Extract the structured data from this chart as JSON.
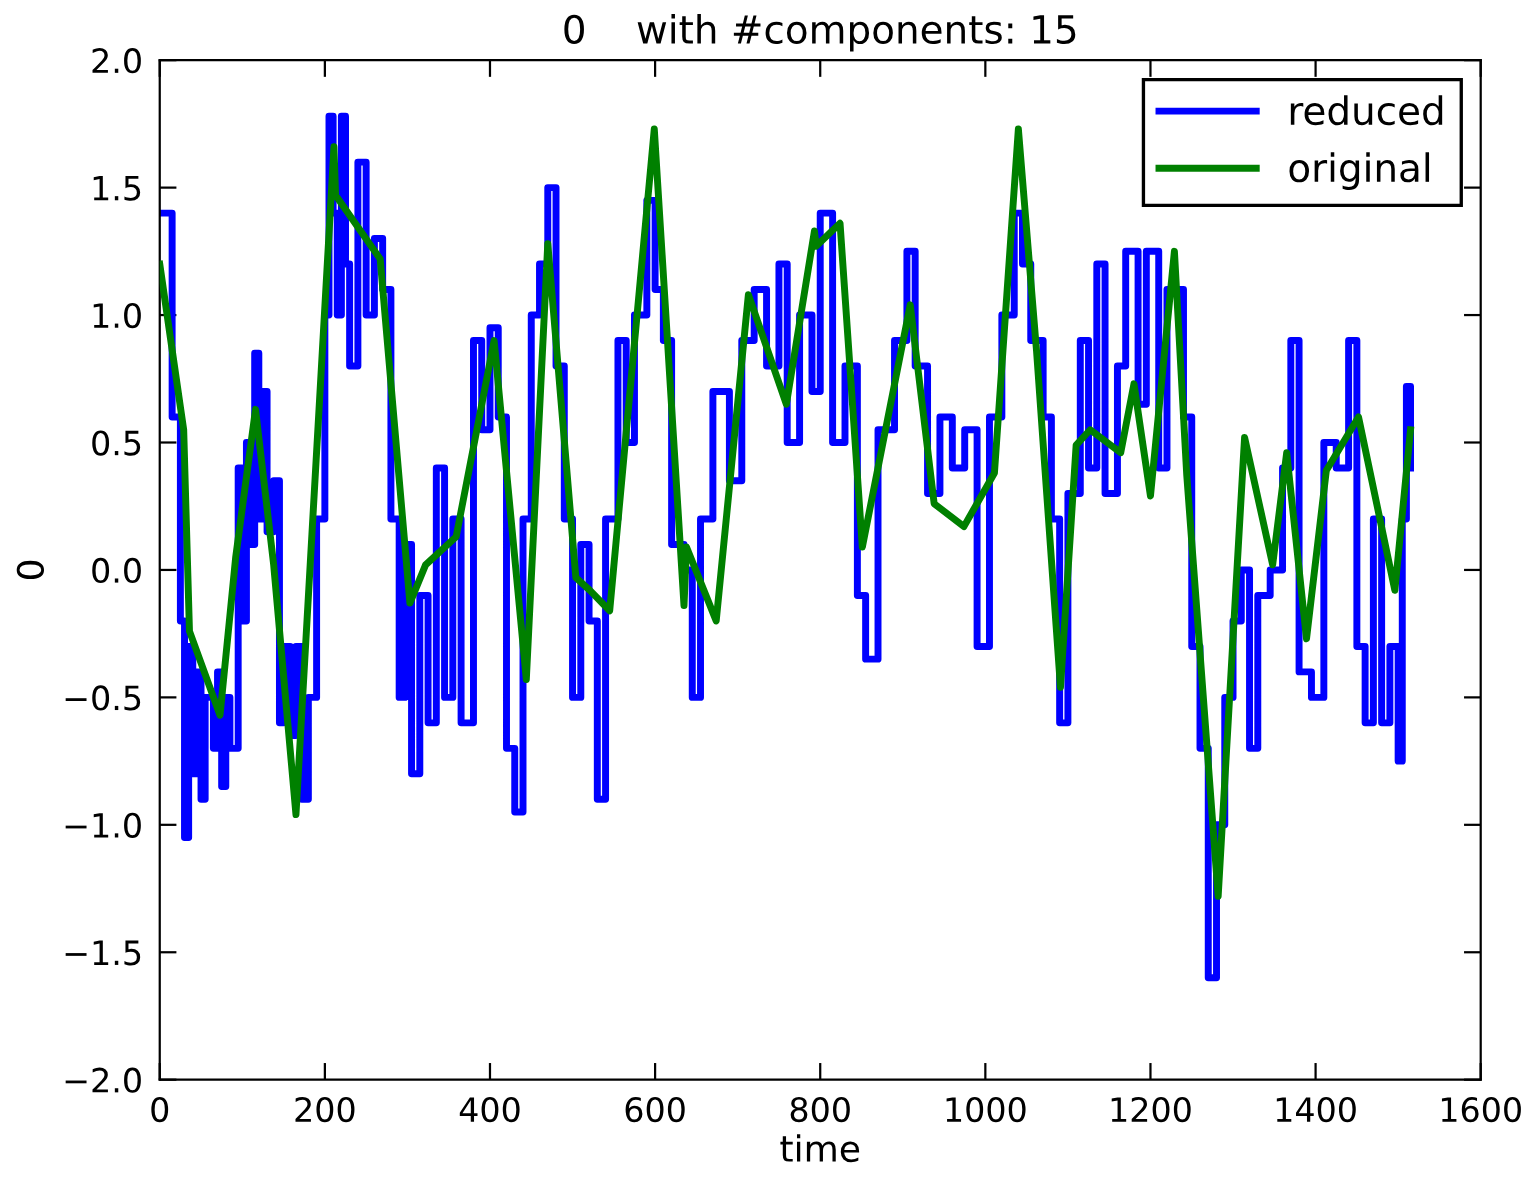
{
  "chart_data": {
    "type": "line",
    "title": "0    with #components: 15",
    "xlabel": "time",
    "ylabel": "0",
    "xlim": [
      0,
      1600
    ],
    "xticks": [
      0,
      200,
      400,
      600,
      800,
      1000,
      1200,
      1400,
      1600
    ],
    "ylim": [
      -2.0,
      2.0
    ],
    "yticks": [
      {
        "value": -2.0,
        "label": "−2.0"
      },
      {
        "value": -1.5,
        "label": "−1.5"
      },
      {
        "value": -1.0,
        "label": "−1.0"
      },
      {
        "value": -0.5,
        "label": "−0.5"
      },
      {
        "value": 0.0,
        "label": "0.0"
      },
      {
        "value": 0.5,
        "label": "0.5"
      },
      {
        "value": 1.0,
        "label": "1.0"
      },
      {
        "value": 1.5,
        "label": "1.5"
      },
      {
        "value": 2.0,
        "label": "2.0"
      }
    ],
    "grid": false,
    "legend": "top right",
    "marker": "none",
    "line_style": "solid",
    "series": [
      {
        "name": "reduced",
        "type": "step",
        "color": "#0000ff",
        "x": [
          0,
          10,
          15,
          20,
          25,
          30,
          35,
          40,
          45,
          50,
          55,
          65,
          70,
          75,
          80,
          85,
          95,
          100,
          105,
          110,
          115,
          120,
          125,
          130,
          138,
          145,
          150,
          158,
          165,
          172,
          180,
          190,
          200,
          205,
          210,
          215,
          220,
          225,
          230,
          240,
          250,
          260,
          270,
          280,
          290,
          297,
          305,
          315,
          325,
          335,
          345,
          355,
          365,
          380,
          390,
          400,
          410,
          420,
          430,
          440,
          450,
          460,
          470,
          480,
          490,
          500,
          510,
          520,
          530,
          540,
          555,
          565,
          575,
          590,
          600,
          610,
          620,
          635,
          645,
          655,
          670,
          690,
          705,
          720,
          735,
          750,
          760,
          775,
          790,
          800,
          815,
          830,
          845,
          855,
          870,
          890,
          905,
          915,
          930,
          945,
          960,
          975,
          990,
          1005,
          1020,
          1035,
          1045,
          1055,
          1070,
          1080,
          1090,
          1100,
          1115,
          1125,
          1135,
          1145,
          1160,
          1170,
          1185,
          1195,
          1210,
          1220,
          1240,
          1250,
          1260,
          1270,
          1280,
          1290,
          1300,
          1310,
          1320,
          1330,
          1345,
          1360,
          1370,
          1380,
          1395,
          1410,
          1425,
          1440,
          1450,
          1460,
          1470,
          1480,
          1490,
          1500,
          1505,
          1510,
          1515
        ],
        "values": [
          1.4,
          1.4,
          0.6,
          0.6,
          -0.2,
          -1.05,
          -0.3,
          -0.8,
          -0.4,
          -0.9,
          -0.5,
          -0.7,
          -0.4,
          -0.85,
          -0.5,
          -0.7,
          0.4,
          -0.2,
          0.5,
          0.1,
          0.85,
          0.2,
          0.7,
          0.15,
          0.35,
          -0.6,
          -0.3,
          -0.65,
          -0.3,
          -0.9,
          -0.5,
          0.2,
          1.0,
          1.78,
          1.4,
          1.0,
          1.78,
          1.2,
          0.8,
          1.6,
          1.0,
          1.3,
          1.1,
          0.2,
          -0.5,
          0.1,
          -0.8,
          -0.1,
          -0.6,
          0.4,
          -0.5,
          0.2,
          -0.6,
          0.9,
          0.55,
          0.95,
          0.6,
          -0.7,
          -0.95,
          0.2,
          1.0,
          1.2,
          1.5,
          0.8,
          0.2,
          -0.5,
          0.1,
          -0.2,
          -0.9,
          0.2,
          0.9,
          0.5,
          1.0,
          1.45,
          1.1,
          0.9,
          0.1,
          0.0,
          -0.5,
          0.2,
          0.7,
          0.35,
          0.9,
          1.1,
          0.8,
          1.2,
          0.5,
          1.0,
          0.7,
          1.4,
          0.5,
          0.8,
          -0.1,
          -0.35,
          0.55,
          0.9,
          1.25,
          0.8,
          0.3,
          0.6,
          0.4,
          0.55,
          -0.3,
          0.6,
          1.0,
          1.4,
          1.2,
          0.9,
          0.6,
          0.2,
          -0.6,
          0.3,
          0.9,
          0.4,
          1.2,
          0.3,
          0.8,
          1.25,
          0.65,
          1.25,
          0.4,
          1.1,
          0.6,
          -0.3,
          -0.7,
          -1.6,
          -1.0,
          -0.5,
          -0.2,
          0.0,
          -0.7,
          -0.1,
          0.0,
          0.4,
          0.9,
          -0.4,
          -0.5,
          0.5,
          0.4,
          0.9,
          -0.3,
          -0.6,
          0.2,
          -0.6,
          -0.3,
          -0.75,
          0.2,
          0.72,
          0.4
        ]
      },
      {
        "name": "original",
        "color": "#008000",
        "x": [
          0,
          29,
          36,
          73,
          92,
          116,
          138,
          165,
          211,
          213,
          267,
          303,
          322,
          359,
          405,
          444,
          470,
          504,
          521,
          545,
          599,
          635,
          638,
          674,
          713,
          759,
          793,
          795,
          824,
          851,
          909,
          938,
          974,
          1011,
          1040,
          1062,
          1091,
          1110,
          1127,
          1164,
          1180,
          1200,
          1229,
          1244,
          1282,
          1314,
          1348,
          1365,
          1389,
          1413,
          1452,
          1496,
          1515
        ],
        "values": [
          1.2,
          0.55,
          -0.24,
          -0.57,
          0.05,
          0.63,
          0.02,
          -0.96,
          1.66,
          1.47,
          1.22,
          -0.13,
          0.02,
          0.13,
          0.9,
          -0.43,
          1.28,
          -0.03,
          -0.08,
          -0.16,
          1.73,
          -0.14,
          0.09,
          -0.2,
          1.08,
          0.65,
          1.33,
          1.27,
          1.36,
          0.09,
          1.04,
          0.26,
          0.17,
          0.38,
          1.73,
          0.86,
          -0.46,
          0.49,
          0.55,
          0.46,
          0.73,
          0.29,
          1.25,
          0.37,
          -1.28,
          0.52,
          0.02,
          0.46,
          -0.27,
          0.39,
          0.6,
          -0.08,
          0.55
        ]
      }
    ]
  }
}
